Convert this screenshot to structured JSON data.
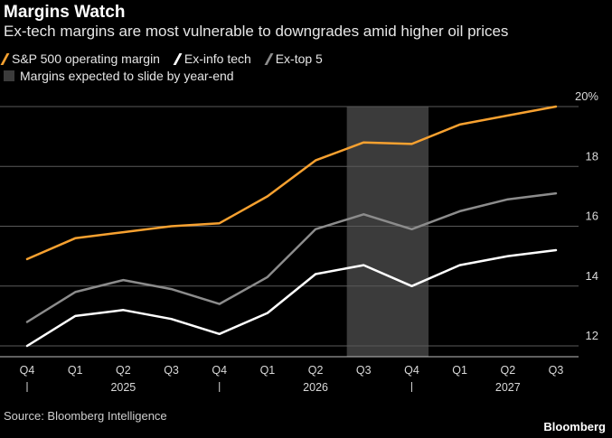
{
  "title": "Margins Watch",
  "subtitle": "Ex-tech margins are most vulnerable to downgrades amid higher oil prices",
  "legend": [
    {
      "label": "S&P 500 operating margin",
      "color": "#f7a130"
    },
    {
      "label": "Ex-info tech",
      "color": "#ffffff"
    },
    {
      "label": "Ex-top 5",
      "color": "#8c8c8c"
    },
    {
      "label": "Margins expected to slide by year-end",
      "color": "#3b3b3b"
    }
  ],
  "source": "Source: Bloomberg Intelligence",
  "brand": "Bloomberg",
  "chart_data": {
    "type": "line",
    "x": [
      "Q4",
      "Q1",
      "Q2",
      "Q3",
      "Q4",
      "Q1",
      "Q2",
      "Q3",
      "Q4",
      "Q1",
      "Q2",
      "Q3"
    ],
    "year_labels": [
      "2025",
      "2026",
      "2027"
    ],
    "y_ticks": [
      "20%",
      "18",
      "16",
      "14",
      "12"
    ],
    "ylim": [
      11.7,
      20.1
    ],
    "grid": true,
    "shaded_region": {
      "from_index": 7,
      "to_index": 8,
      "label": "Margins expected to slide by year-end",
      "color": "#3b3b3b"
    },
    "series": [
      {
        "name": "S&P 500 operating margin",
        "color": "#f7a130",
        "values": [
          14.9,
          15.6,
          15.8,
          16.0,
          16.1,
          17.0,
          18.2,
          18.8,
          18.75,
          19.4,
          19.7,
          20.0
        ]
      },
      {
        "name": "Ex-info tech",
        "color": "#ffffff",
        "values": [
          12.0,
          13.0,
          13.2,
          12.9,
          12.4,
          13.1,
          14.4,
          14.7,
          14.0,
          14.7,
          15.0,
          15.2
        ]
      },
      {
        "name": "Ex-top 5",
        "color": "#8c8c8c",
        "values": [
          12.8,
          13.8,
          14.2,
          13.9,
          13.4,
          14.3,
          15.9,
          16.4,
          15.9,
          16.5,
          16.9,
          17.1
        ]
      }
    ]
  }
}
